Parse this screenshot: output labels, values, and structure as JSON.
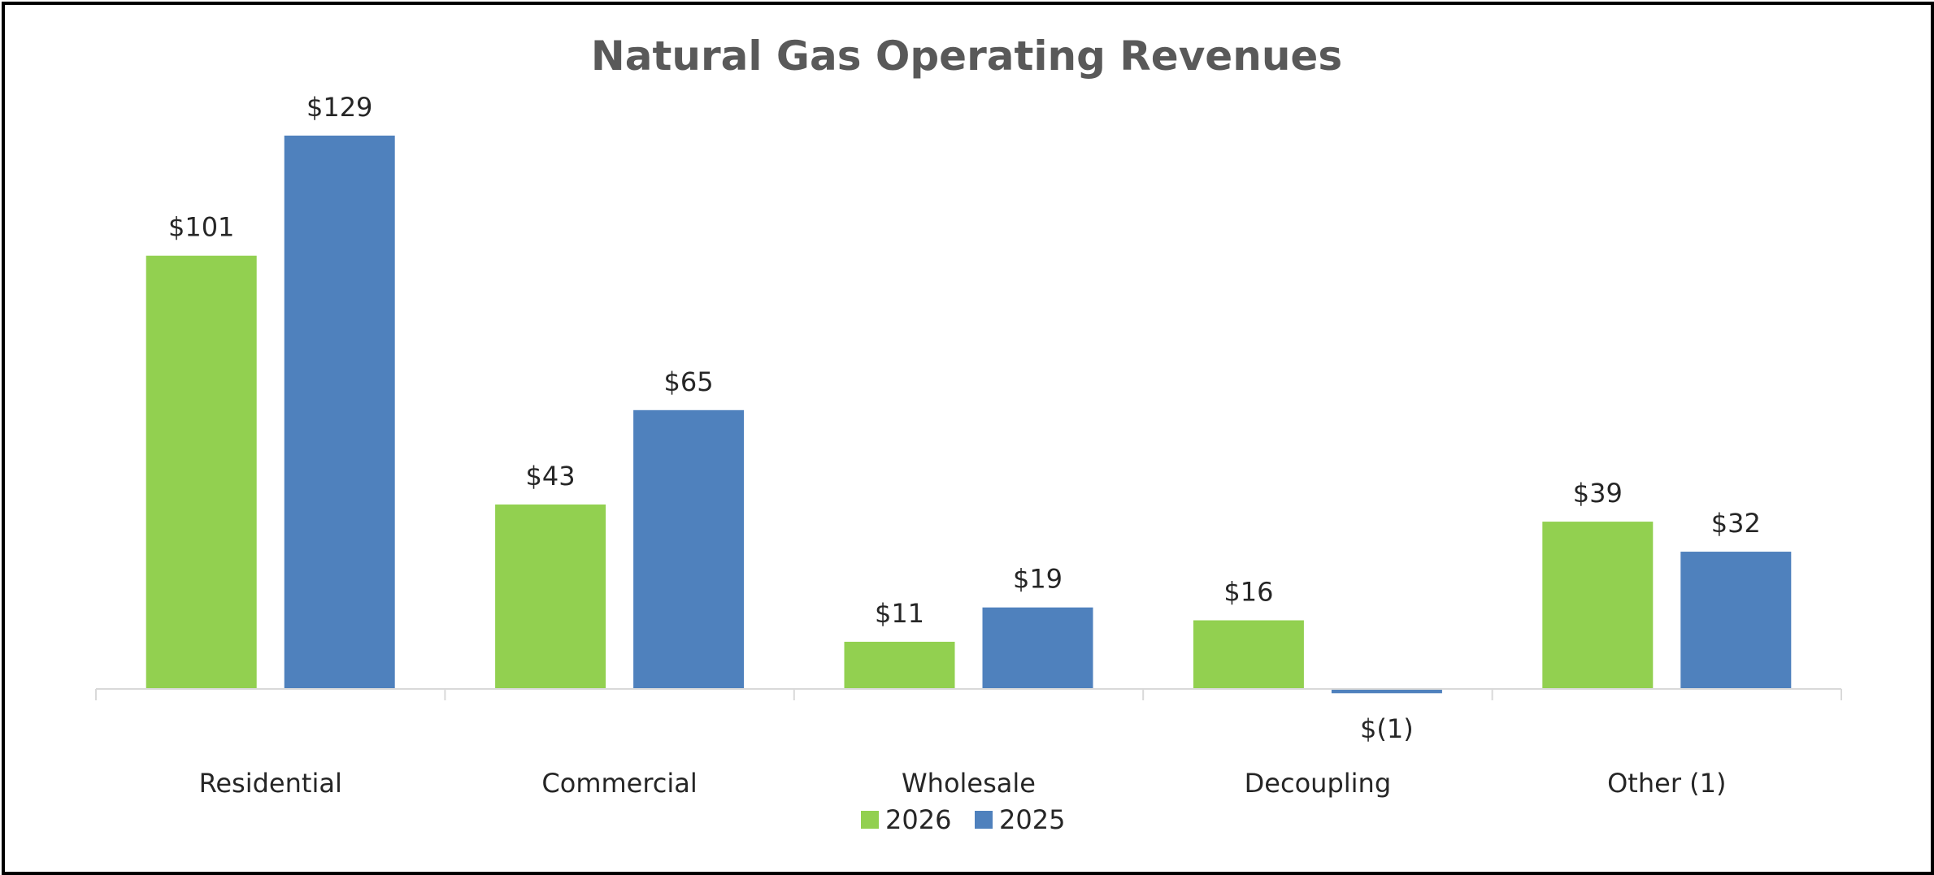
{
  "chart_data": {
    "type": "bar",
    "title": "Natural Gas Operating Revenues",
    "xlabel": "",
    "ylabel": "",
    "categories": [
      "Residential",
      "Commercial",
      "Wholesale",
      "Decoupling",
      "Other (1)"
    ],
    "series": [
      {
        "name": "2026",
        "values": [
          101,
          43,
          11,
          16,
          39
        ],
        "labels": [
          "$101",
          "$43",
          "$11",
          "$16",
          "$39"
        ],
        "color": "#92d050"
      },
      {
        "name": "2025",
        "values": [
          129,
          65,
          19,
          -1,
          32
        ],
        "labels": [
          "$129",
          "$65",
          "$19",
          "$(1)",
          "$32"
        ],
        "color": "#4f81bd"
      }
    ],
    "ylim": [
      -6,
      139
    ],
    "grid": false,
    "legend": "bottom-center",
    "colors": {
      "title": "#595959",
      "text": "#262626",
      "axis": "#d9d9d9"
    }
  }
}
